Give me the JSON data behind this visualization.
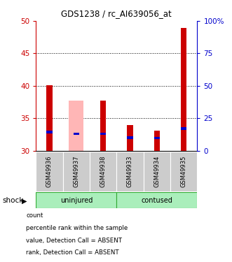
{
  "title": "GDS1238 / rc_AI639056_at",
  "samples": [
    "GSM49936",
    "GSM49937",
    "GSM49938",
    "GSM49933",
    "GSM49934",
    "GSM49935"
  ],
  "ylim": [
    30,
    50
  ],
  "y2lim": [
    0,
    100
  ],
  "yticks": [
    30,
    35,
    40,
    45,
    50
  ],
  "y2ticks": [
    0,
    25,
    50,
    75,
    100
  ],
  "dotted_lines": [
    35,
    40,
    45
  ],
  "red_bar_tops": [
    40.1,
    30,
    37.7,
    33.9,
    33.1,
    48.9
  ],
  "pink_bar_tops": [
    0,
    37.7,
    0,
    0,
    0,
    0
  ],
  "blue_bar_bottoms": [
    32.7,
    32.4,
    32.4,
    31.8,
    31.8,
    33.2
  ],
  "blue_bar_tops": [
    33.1,
    32.8,
    32.8,
    32.2,
    32.1,
    33.6
  ],
  "lightblue_bar_bottoms": [
    0,
    32.4,
    0,
    0,
    0,
    0
  ],
  "lightblue_bar_tops": [
    0,
    32.7,
    0,
    0,
    0,
    0
  ],
  "red_color": "#cc0000",
  "pink_color": "#ffb6b6",
  "blue_color": "#0000cc",
  "lightblue_color": "#aaaaee",
  "axis_left_color": "#cc0000",
  "axis_right_color": "#0000cc",
  "label_count": "count",
  "label_percentile": "percentile rank within the sample",
  "label_absent_value": "value, Detection Call = ABSENT",
  "label_absent_rank": "rank, Detection Call = ABSENT",
  "factor_label": "shock",
  "group_border_color": "#33aa33",
  "group_fill_color": "#aaeebb",
  "label_bg_color": "#cccccc"
}
